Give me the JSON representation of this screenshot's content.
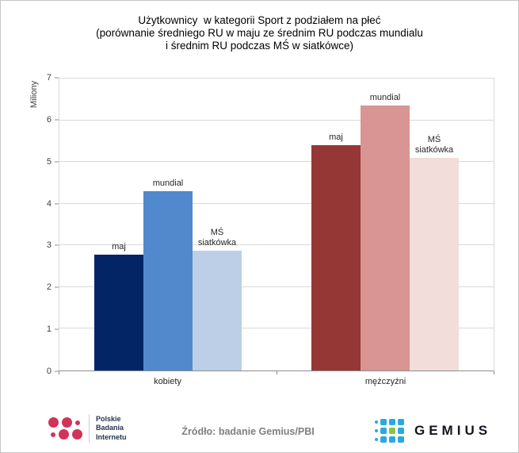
{
  "header": {
    "title_lines": [
      "Użytkownicy  w kategorii Sport z podziałem na płeć",
      "(porównanie średniego RU w maju ze średnim RU podczas mundialu",
      "i średnim RU podczas MŚ w siatkówce)"
    ]
  },
  "chart_data": {
    "type": "bar",
    "ylabel": "Miliony",
    "ylim": [
      0,
      7
    ],
    "yticks": [
      0,
      1,
      2,
      3,
      4,
      5,
      6,
      7
    ],
    "grid": "horizontal",
    "legend": "none (labels above bars)",
    "categories": [
      "kobiety",
      "mężczyźni"
    ],
    "series": [
      {
        "name": "maj",
        "values": [
          2.78,
          5.4
        ]
      },
      {
        "name": "mundial",
        "values": [
          4.3,
          6.35
        ]
      },
      {
        "name": "MŚ siatkówka",
        "values": [
          2.88,
          5.1
        ]
      }
    ],
    "bar_label_lines": [
      [
        "maj"
      ],
      [
        "mundial"
      ],
      [
        "MŚ",
        "siatkówka"
      ]
    ],
    "bar_colors": {
      "kobiety": [
        "#032566",
        "#5289cc",
        "#bccfe6"
      ],
      "mężczyźni": [
        "#943735",
        "#d89593",
        "#f2dddb"
      ]
    }
  },
  "footer": {
    "pbi_logo": {
      "text_lines": [
        "Polskie",
        "Badania",
        "Internetu"
      ],
      "dot_color": "#d23358",
      "rows": [
        [
          "big",
          "big",
          "small"
        ],
        [
          "small",
          "big",
          "big"
        ]
      ]
    },
    "source": "Źródło: badanie Gemius/PBI",
    "gemius_logo": {
      "text": "GEMIUS",
      "dot_blue": "#2aa9e0",
      "dot_green": "#8bc540",
      "grid": [
        [
          "s",
          "b",
          "b",
          "b"
        ],
        [
          "s",
          "b",
          "g",
          "b"
        ],
        [
          "s",
          "b",
          "b",
          "b"
        ]
      ]
    }
  }
}
